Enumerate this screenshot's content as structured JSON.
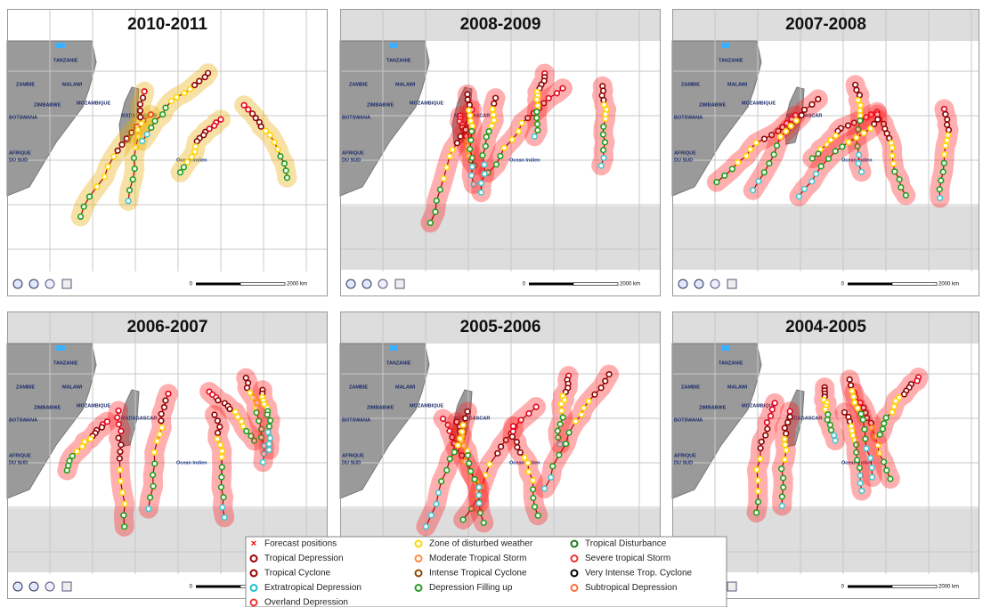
{
  "panels": [
    {
      "title": "2010-2011"
    },
    {
      "title": "2008-2009"
    },
    {
      "title": "2007-2008"
    },
    {
      "title": "2006-2007"
    },
    {
      "title": "2005-2006"
    },
    {
      "title": "2004-2005"
    }
  ],
  "map_labels": {
    "tanzania": "TANZANIE",
    "zambia": "ZAMBIE",
    "malawi": "MALAWI",
    "mozambique": "MOZAMBIQUE",
    "zimbabwe": "ZIMBABWE",
    "botswana": "BOTSWANA",
    "south_africa_1": "AFRIQUE",
    "south_africa_2": "DU SUD",
    "madagascar": "MADAGASCAR",
    "ocean": "Ocean Indien"
  },
  "scale": {
    "start": "0",
    "end": "2000 km"
  },
  "legend": [
    {
      "label": "Forecast positions"
    },
    {
      "label": "Tropical Depression"
    },
    {
      "label": "Tropical Cyclone"
    },
    {
      "label": "Extratropical Depression"
    },
    {
      "label": "Overland Depression"
    },
    {
      "label": "Zone of disturbed weather"
    },
    {
      "label": "Moderate Tropical Storm"
    },
    {
      "label": "Intense Tropical Cyclone"
    },
    {
      "label": "Depression Filling up"
    },
    {
      "label": "Tropical Disturbance"
    },
    {
      "label": "Severe tropical Storm"
    },
    {
      "label": "Very Intense Trop. Cyclone"
    },
    {
      "label": "Subtropical Depression"
    }
  ]
}
